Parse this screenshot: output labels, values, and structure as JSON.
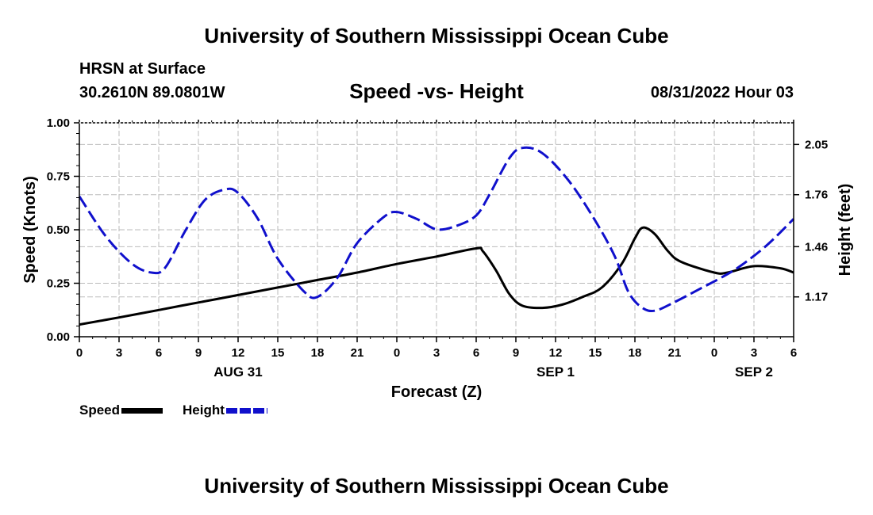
{
  "header": {
    "title": "University of Southern Mississippi Ocean Cube",
    "station": "HRSN at Surface",
    "coordinates": "30.2610N  89.0801W",
    "chart_title": "Speed -vs- Height",
    "datetime": "08/31/2022 Hour 03"
  },
  "footer": {
    "title": "University of Southern Mississippi Ocean Cube"
  },
  "legend": [
    {
      "label": "Speed",
      "color": "#000000"
    },
    {
      "label": "Height",
      "color": "#1010cc"
    }
  ],
  "chart_data": {
    "type": "line",
    "title": "Speed -vs- Height",
    "xlabel": "Forecast (Z)",
    "ylabel": "Speed (Knots)",
    "y2label": "Height (feet)",
    "x_range": [
      0,
      54
    ],
    "ylim": [
      0,
      1
    ],
    "y2lim": [
      0.94,
      2.175
    ],
    "x_ticks": [
      {
        "x": 0,
        "label": "0"
      },
      {
        "x": 3,
        "label": "3"
      },
      {
        "x": 6,
        "label": "6"
      },
      {
        "x": 9,
        "label": "9"
      },
      {
        "x": 12,
        "label": "12"
      },
      {
        "x": 15,
        "label": "15"
      },
      {
        "x": 18,
        "label": "18"
      },
      {
        "x": 21,
        "label": "21"
      },
      {
        "x": 24,
        "label": "0"
      },
      {
        "x": 27,
        "label": "3"
      },
      {
        "x": 30,
        "label": "6"
      },
      {
        "x": 33,
        "label": "9"
      },
      {
        "x": 36,
        "label": "12"
      },
      {
        "x": 39,
        "label": "15"
      },
      {
        "x": 42,
        "label": "18"
      },
      {
        "x": 45,
        "label": "21"
      },
      {
        "x": 48,
        "label": "0"
      },
      {
        "x": 51,
        "label": "3"
      },
      {
        "x": 54,
        "label": "6"
      }
    ],
    "date_labels": [
      {
        "x": 12,
        "label": "AUG 31"
      },
      {
        "x": 36,
        "label": "SEP 1"
      },
      {
        "x": 51,
        "label": "SEP 2"
      }
    ],
    "y_ticks": [
      {
        "value": 0,
        "label": "0.00"
      },
      {
        "value": 0.25,
        "label": "0.25"
      },
      {
        "value": 0.5,
        "label": "0.50"
      },
      {
        "value": 0.75,
        "label": "0.75"
      },
      {
        "value": 1.0,
        "label": "1.00"
      }
    ],
    "y2_ticks": [
      {
        "value": 1.17,
        "label": "1.17"
      },
      {
        "value": 1.46,
        "label": "1.46"
      },
      {
        "value": 1.76,
        "label": "1.76"
      },
      {
        "value": 2.05,
        "label": "2.05"
      }
    ],
    "series": [
      {
        "name": "Speed",
        "axis": "left",
        "color": "#000000",
        "dash": "solid",
        "points": [
          [
            0,
            0.057
          ],
          [
            3,
            0.09
          ],
          [
            6,
            0.125
          ],
          [
            9,
            0.16
          ],
          [
            12,
            0.195
          ],
          [
            15,
            0.23
          ],
          [
            18,
            0.265
          ],
          [
            21,
            0.3
          ],
          [
            24,
            0.34
          ],
          [
            27,
            0.375
          ],
          [
            30,
            0.413
          ],
          [
            30.5,
            0.4
          ],
          [
            31.5,
            0.31
          ],
          [
            32.5,
            0.2
          ],
          [
            33.5,
            0.145
          ],
          [
            35,
            0.135
          ],
          [
            36.5,
            0.15
          ],
          [
            38,
            0.185
          ],
          [
            39.5,
            0.23
          ],
          [
            41,
            0.34
          ],
          [
            42,
            0.46
          ],
          [
            42.6,
            0.51
          ],
          [
            43.5,
            0.48
          ],
          [
            44.5,
            0.4
          ],
          [
            45.5,
            0.35
          ],
          [
            48,
            0.3
          ],
          [
            49,
            0.3
          ],
          [
            51,
            0.33
          ],
          [
            53,
            0.32
          ],
          [
            54,
            0.3
          ]
        ]
      },
      {
        "name": "Height",
        "axis": "right",
        "color": "#1010cc",
        "dash": "dashed",
        "points": [
          [
            0,
            1.75
          ],
          [
            2,
            1.52
          ],
          [
            4,
            1.36
          ],
          [
            5.5,
            1.31
          ],
          [
            6.5,
            1.34
          ],
          [
            8,
            1.55
          ],
          [
            9.5,
            1.73
          ],
          [
            11,
            1.79
          ],
          [
            12,
            1.77
          ],
          [
            13.5,
            1.62
          ],
          [
            15,
            1.39
          ],
          [
            17,
            1.2
          ],
          [
            18,
            1.17
          ],
          [
            19.5,
            1.28
          ],
          [
            21,
            1.48
          ],
          [
            23,
            1.63
          ],
          [
            24,
            1.66
          ],
          [
            25.5,
            1.62
          ],
          [
            27,
            1.56
          ],
          [
            28.5,
            1.58
          ],
          [
            30,
            1.64
          ],
          [
            31,
            1.76
          ],
          [
            32.5,
            1.97
          ],
          [
            33.5,
            2.03
          ],
          [
            35,
            2.0
          ],
          [
            37,
            1.84
          ],
          [
            39,
            1.61
          ],
          [
            40.5,
            1.4
          ],
          [
            41.5,
            1.2
          ],
          [
            42.5,
            1.11
          ],
          [
            43.5,
            1.09
          ],
          [
            45,
            1.14
          ],
          [
            47,
            1.22
          ],
          [
            48.5,
            1.28
          ],
          [
            50,
            1.35
          ],
          [
            52,
            1.47
          ],
          [
            54,
            1.62
          ]
        ]
      }
    ]
  }
}
